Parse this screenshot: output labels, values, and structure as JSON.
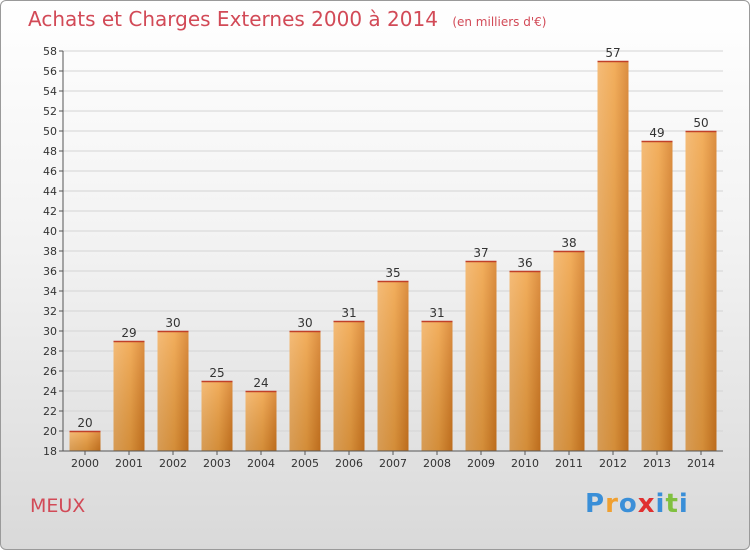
{
  "chart_data": {
    "type": "bar",
    "title": "Achats et Charges Externes 2000 à 2014",
    "subtitle": "(en milliers d'€)",
    "categories": [
      "2000",
      "2001",
      "2002",
      "2003",
      "2004",
      "2005",
      "2006",
      "2007",
      "2008",
      "2009",
      "2010",
      "2011",
      "2012",
      "2013",
      "2014"
    ],
    "values": [
      20,
      29,
      30,
      25,
      24,
      30,
      31,
      35,
      31,
      37,
      36,
      38,
      57,
      49,
      50
    ],
    "ylim": [
      18,
      58
    ],
    "yticks": [
      18,
      20,
      22,
      24,
      26,
      28,
      30,
      32,
      34,
      36,
      38,
      40,
      42,
      44,
      46,
      48,
      50,
      52,
      54,
      56,
      58
    ],
    "grid": true,
    "bar_color": "#f0a040",
    "title_color": "#d24a57"
  },
  "commune": "MEUX",
  "logo": {
    "text": "Proxiti",
    "letters": [
      {
        "ch": "P",
        "color": "#3a8fd8"
      },
      {
        "ch": "r",
        "color": "#f0a030"
      },
      {
        "ch": "o",
        "color": "#3a8fd8"
      },
      {
        "ch": "x",
        "color": "#e03030"
      },
      {
        "ch": "i",
        "color": "#3a8fd8"
      },
      {
        "ch": "t",
        "color": "#80c040"
      },
      {
        "ch": "i",
        "color": "#3a8fd8"
      }
    ]
  }
}
